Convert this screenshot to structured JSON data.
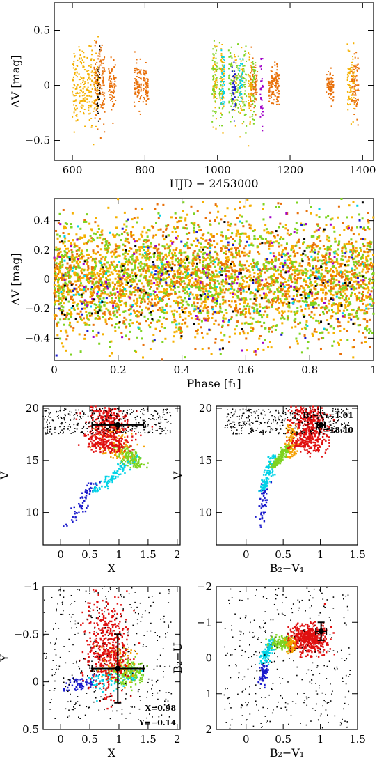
{
  "chart_data": [
    {
      "id": "lightcurve",
      "type": "scatter",
      "title": "",
      "xlabel": "HJD − 2453000",
      "ylabel": "ΔV [mag]",
      "xlim": [
        550,
        1430
      ],
      "ylim": [
        0.75,
        -0.68
      ],
      "y_inverted": true,
      "xticks": [
        600,
        800,
        1000,
        1200,
        1400
      ],
      "yticks": [
        -0.5,
        0,
        0.5
      ],
      "grid": false,
      "series": [
        {
          "color": "#f5b000",
          "segments": [
            [
              600,
              615,
              0.32
            ],
            [
              618,
              635,
              0.3
            ],
            [
              640,
              655,
              0.3
            ],
            [
              658,
              672,
              0.28
            ],
            [
              1358,
              1378,
              0.25
            ]
          ]
        },
        {
          "color": "#e8700a",
          "segments": [
            [
              660,
              690,
              0.3
            ],
            [
              700,
              720,
              0.22
            ],
            [
              770,
              790,
              0.18
            ],
            [
              795,
              810,
              0.15
            ],
            [
              1090,
              1110,
              0.2
            ],
            [
              1140,
              1170,
              0.15
            ],
            [
              1300,
              1320,
              0.12
            ],
            [
              1370,
              1390,
              0.25
            ]
          ]
        },
        {
          "color": "#7ed321",
          "segments": [
            [
              985,
              1000,
              0.33
            ],
            [
              1005,
              1015,
              0.33
            ],
            [
              1030,
              1042,
              0.33
            ],
            [
              1050,
              1060,
              0.3
            ],
            [
              1070,
              1080,
              0.3
            ],
            [
              1095,
              1105,
              0.3
            ]
          ]
        },
        {
          "color": "#f5b000",
          "segments": [
            [
              988,
              998,
              0.3
            ],
            [
              1008,
              1018,
              0.3
            ],
            [
              1045,
              1052,
              0.3
            ],
            [
              1062,
              1070,
              0.3
            ],
            [
              1085,
              1095,
              0.3
            ]
          ]
        },
        {
          "color": "#1a1acc",
          "segments": [
            [
              1040,
              1050,
              0.2
            ]
          ]
        },
        {
          "color": "#00d2e6",
          "segments": [
            [
              1010,
              1020,
              0.25
            ],
            [
              1060,
              1070,
              0.22
            ]
          ]
        },
        {
          "color": "#a000c8",
          "segments": [
            [
              1118,
              1126,
              0.32
            ]
          ]
        },
        {
          "color": "#000000",
          "segments": [
            [
              668,
              676,
              0.25
            ]
          ]
        }
      ]
    },
    {
      "id": "phase",
      "type": "scatter",
      "title": "",
      "xlabel": "Phase [f₁]",
      "ylabel": "ΔV [mag]",
      "xlim": [
        0,
        1
      ],
      "ylim": [
        0.55,
        -0.55
      ],
      "y_inverted": true,
      "xticks": [
        0,
        0.2,
        0.4,
        0.6,
        0.8,
        1
      ],
      "yticks": [
        -0.4,
        -0.2,
        0,
        0.2,
        0.4
      ],
      "grid": false,
      "phase_spread": 0.2,
      "series": [
        {
          "color": "#f5b000",
          "weight": 0.42
        },
        {
          "color": "#e8700a",
          "weight": 0.25
        },
        {
          "color": "#7ed321",
          "weight": 0.25
        },
        {
          "color": "#1a1acc",
          "weight": 0.02
        },
        {
          "color": "#a000c8",
          "weight": 0.02
        },
        {
          "color": "#00d2e6",
          "weight": 0.02
        },
        {
          "color": "#000000",
          "weight": 0.02
        }
      ]
    },
    {
      "id": "cmd-x",
      "type": "scatter",
      "title": "",
      "xlabel": "X",
      "ylabel": "V",
      "xlim": [
        -0.3,
        2.05
      ],
      "ylim": [
        20.2,
        6.9
      ],
      "y_inverted": true,
      "xticks": [
        0,
        0.5,
        1,
        1.5,
        2
      ],
      "yticks": [
        10,
        15,
        20
      ],
      "grid": false,
      "star": {
        "x": 0.98,
        "y": 18.4,
        "xerr": 0.44,
        "yerr": 0
      },
      "note": []
    },
    {
      "id": "cmd-bv",
      "type": "scatter",
      "title": "",
      "xlabel": "B₂−V₁",
      "ylabel": "V",
      "xlim": [
        -0.4,
        1.5
      ],
      "ylim": [
        20.2,
        6.9
      ],
      "y_inverted": true,
      "xticks": [
        0,
        0.5,
        1,
        1.5
      ],
      "yticks": [
        10,
        15,
        20
      ],
      "grid": false,
      "star": {
        "x": 1.01,
        "y": 18.4,
        "xerr": 0.05,
        "yerr": 0
      },
      "note": [
        "B₂−V₁=1.01",
        "V=18.40"
      ]
    },
    {
      "id": "xy",
      "type": "scatter",
      "title": "",
      "xlabel": "X",
      "ylabel": "Y",
      "xlim": [
        -0.3,
        2.05
      ],
      "ylim": [
        -1,
        0.5
      ],
      "y_inverted": false,
      "xticks": [
        0,
        0.5,
        1,
        1.5,
        2
      ],
      "yticks": [
        -1,
        -0.5,
        0,
        0.5
      ],
      "grid": false,
      "star": {
        "x": 0.98,
        "y": -0.14,
        "xerr": 0.44,
        "yerr": 0.36
      },
      "note": [
        "X=0.98",
        "Y=−0.14"
      ]
    },
    {
      "id": "ccd",
      "type": "scatter",
      "title": "",
      "xlabel": "B₂−V₁",
      "ylabel": "B₂−U",
      "xlim": [
        -0.4,
        1.5
      ],
      "ylim": [
        -2,
        2
      ],
      "y_inverted": false,
      "xticks": [
        0,
        0.5,
        1,
        1.5
      ],
      "yticks": [
        -2,
        -1,
        0,
        1,
        2
      ],
      "grid": false,
      "star": {
        "x": 1.01,
        "y": -0.75,
        "xerr": 0.07,
        "yerr": 0.25
      },
      "note": []
    }
  ],
  "colors": {
    "blue": "#1a1acc",
    "cyan": "#00d2e6",
    "green": "#7ed321",
    "orange": "#f5a000",
    "red": "#e01010",
    "black": "#000000"
  }
}
